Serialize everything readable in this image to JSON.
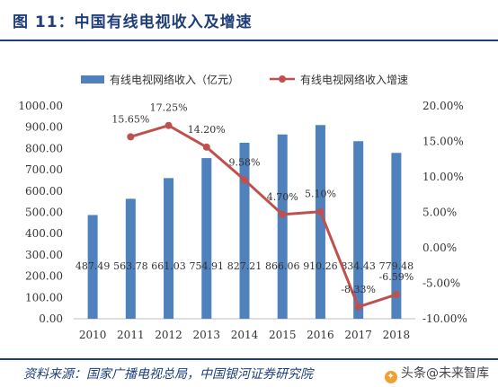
{
  "header": {
    "title": "图 11：中国有线电视收入及增速"
  },
  "footer": {
    "source": "资料来源：国家广播电视总局，中国银河证券研究院",
    "watermark": "头条@未来智库"
  },
  "chart_data": {
    "type": "bar",
    "categories": [
      "2010",
      "2011",
      "2012",
      "2013",
      "2014",
      "2015",
      "2016",
      "2017",
      "2018"
    ],
    "series": [
      {
        "name": "有线电视网络收入（亿元）",
        "type": "bar",
        "axis": "left",
        "values": [
          487.49,
          563.78,
          661.03,
          754.91,
          827.21,
          866.06,
          910.26,
          834.43,
          779.48
        ],
        "labels": [
          "487.49",
          "563.78",
          "661.03",
          "754.91",
          "827.21",
          "866.06",
          "910.26",
          "834.43",
          "779.48"
        ],
        "color": "#4f81bd"
      },
      {
        "name": "有线电视网络收入增速",
        "type": "line",
        "axis": "right",
        "values": [
          null,
          15.65,
          17.25,
          14.2,
          9.58,
          4.7,
          5.1,
          -8.33,
          -6.59
        ],
        "labels": [
          "",
          "15.65%",
          "17.25%",
          "14.20%",
          "9.58%",
          "4.70%",
          "5.10%",
          "-8.33%",
          "-6.59%"
        ],
        "color": "#c0504d"
      }
    ],
    "y_left": {
      "min": 0,
      "max": 1000,
      "step": 100,
      "ticks": [
        "0.00",
        "100.00",
        "200.00",
        "300.00",
        "400.00",
        "500.00",
        "600.00",
        "700.00",
        "800.00",
        "900.00",
        "1000.00"
      ]
    },
    "y_right": {
      "min": -10,
      "max": 20,
      "step": 5,
      "ticks": [
        "-10.00%",
        "-5.00%",
        "0.00%",
        "5.00%",
        "10.00%",
        "15.00%",
        "20.00%"
      ]
    },
    "legend": "top",
    "grid": false
  }
}
